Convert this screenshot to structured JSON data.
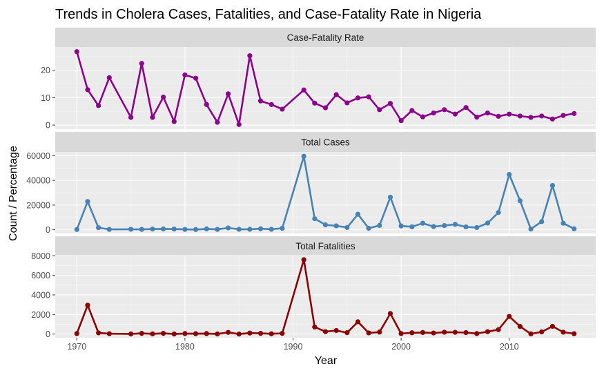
{
  "chart_data": {
    "type": "line",
    "title": "Trends in Cholera Cases, Fatalities, and Case-Fatality Rate in Nigeria",
    "xlabel": "Year",
    "ylabel": "Count / Percentage",
    "x_ticks": [
      1970,
      1980,
      1990,
      2000,
      2010
    ],
    "xlim": [
      1968,
      2018
    ],
    "grid": true,
    "x": [
      1970,
      1971,
      1972,
      1973,
      1975,
      1976,
      1977,
      1978,
      1979,
      1980,
      1981,
      1982,
      1983,
      1984,
      1985,
      1986,
      1987,
      1988,
      1989,
      1991,
      1992,
      1993,
      1994,
      1995,
      1996,
      1997,
      1998,
      1999,
      2000,
      2001,
      2002,
      2003,
      2004,
      2005,
      2006,
      2007,
      2008,
      2009,
      2010,
      2011,
      2012,
      2013,
      2014,
      2015,
      2016
    ],
    "panels": [
      {
        "name": "Case-Fatality Rate",
        "color": "#8b008b",
        "ylim": [
          -1.5,
          28.5
        ],
        "y_ticks": [
          0,
          10,
          20
        ],
        "values": [
          26.8,
          12.9,
          7.1,
          17.3,
          2.8,
          22.5,
          2.8,
          10.2,
          1.3,
          18.3,
          17.1,
          7.5,
          1.0,
          11.4,
          0.2,
          25.3,
          8.8,
          7.5,
          5.8,
          12.8,
          8.0,
          6.3,
          11.1,
          8.1,
          9.9,
          10.3,
          5.6,
          7.9,
          1.6,
          5.3,
          3.0,
          4.4,
          5.6,
          4.0,
          6.4,
          2.9,
          4.4,
          3.2,
          4.0,
          3.3,
          2.8,
          3.3,
          2.2,
          3.5,
          4.2
        ]
      },
      {
        "name": "Total Cases",
        "color": "#4682b4",
        "ylim": [
          -3000,
          63000
        ],
        "y_ticks": [
          0,
          20000,
          40000,
          60000
        ],
        "values": [
          200,
          22900,
          1700,
          300,
          400,
          300,
          600,
          700,
          600,
          300,
          200,
          700,
          300,
          1500,
          400,
          400,
          800,
          400,
          1200,
          59500,
          9000,
          4000,
          3200,
          1800,
          12600,
          1200,
          3500,
          26400,
          3100,
          2400,
          5300,
          2600,
          3400,
          4400,
          2300,
          1800,
          5400,
          14000,
          44800,
          23500,
          600,
          6600,
          35900,
          5300,
          800
        ]
      },
      {
        "name": "Total Fatalities",
        "color": "#8b0000",
        "ylim": [
          -380,
          8020
        ],
        "y_ticks": [
          0,
          2000,
          4000,
          6000,
          8000
        ],
        "values": [
          50,
          2950,
          120,
          40,
          10,
          70,
          20,
          70,
          10,
          50,
          40,
          50,
          10,
          170,
          0,
          100,
          70,
          30,
          70,
          7600,
          720,
          250,
          360,
          140,
          1250,
          120,
          200,
          2100,
          50,
          130,
          160,
          110,
          190,
          180,
          150,
          50,
          240,
          450,
          1800,
          780,
          20,
          220,
          790,
          190,
          40
        ]
      }
    ]
  }
}
